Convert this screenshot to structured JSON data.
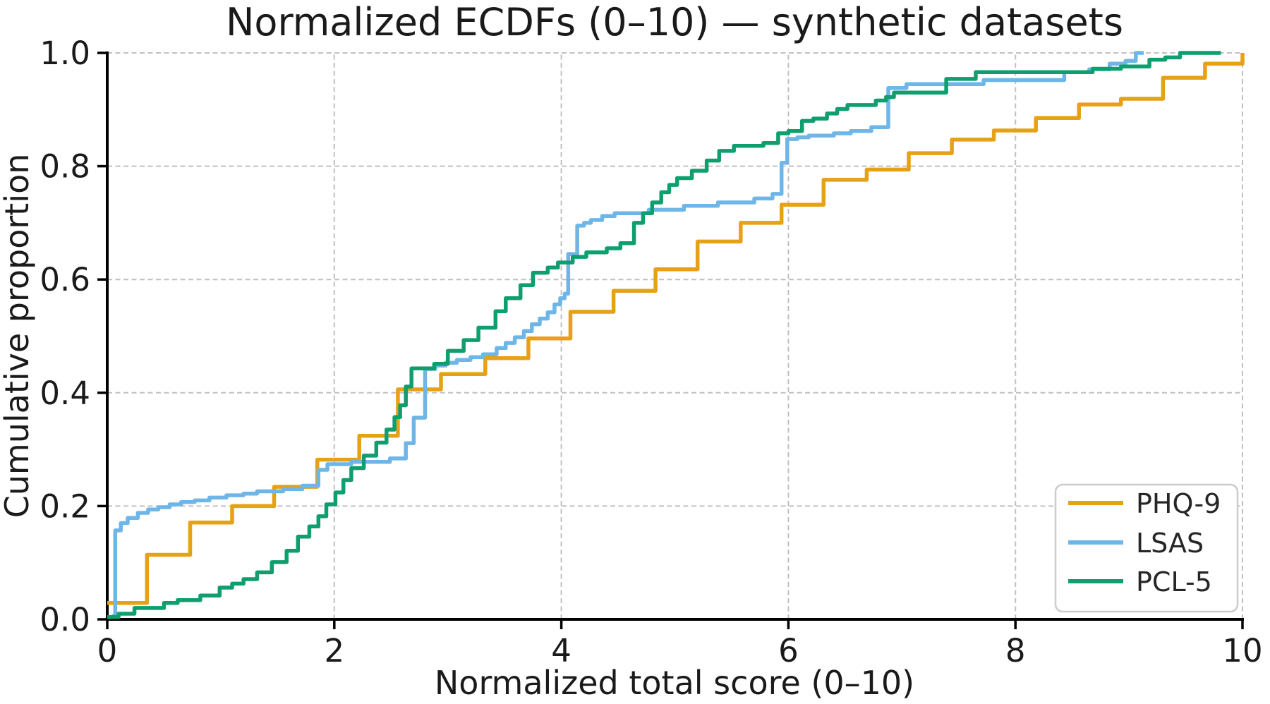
{
  "title": "Normalized ECDFs (0–10) — synthetic datasets",
  "colors": {
    "phq9": "#E6A117",
    "lsas": "#6EB6E8",
    "pcl5": "#0F9F6E",
    "grid": "#C0C0C0",
    "spine": "#000000",
    "text": "#1A1A1A",
    "legend_border": "#CCCCCC",
    "background": "#FFFFFF"
  },
  "axes": {
    "xlabel": "Normalized total score (0–10)",
    "ylabel": "Cumulative proportion",
    "x_ticks": [
      0,
      2,
      4,
      6,
      8,
      10
    ],
    "x_tick_labels": [
      "0",
      "2",
      "4",
      "6",
      "8",
      "10"
    ],
    "y_ticks": [
      0.0,
      0.2,
      0.4,
      0.6,
      0.8,
      1.0
    ],
    "y_tick_labels": [
      "0.0",
      "0.2",
      "0.4",
      "0.6",
      "0.8",
      "1.0"
    ],
    "xlim": [
      0,
      10
    ],
    "ylim": [
      0.0,
      1.0
    ],
    "grid": "dashed"
  },
  "legend": {
    "position": "lower right",
    "entries": [
      {
        "label": "PHQ-9",
        "color_key": "phq9"
      },
      {
        "label": "LSAS",
        "color_key": "lsas"
      },
      {
        "label": "PCL-5",
        "color_key": "pcl5"
      }
    ]
  },
  "chart_data": {
    "type": "line",
    "subtype": "ecdf-step",
    "title": "Normalized ECDFs (0–10) — synthetic datasets",
    "xlabel": "Normalized total score (0–10)",
    "ylabel": "Cumulative proportion",
    "xlim": [
      0,
      10
    ],
    "ylim": [
      0.0,
      1.0
    ],
    "grid": true,
    "legend_position": "lower right",
    "series": [
      {
        "name": "PHQ-9",
        "color_key": "phq9",
        "end_x": 10.0,
        "points": [
          [
            0.0,
            0.029
          ],
          [
            0.35,
            0.114
          ],
          [
            0.73,
            0.171
          ],
          [
            1.1,
            0.2
          ],
          [
            1.47,
            0.234
          ],
          [
            1.85,
            0.282
          ],
          [
            2.22,
            0.324
          ],
          [
            2.56,
            0.406
          ],
          [
            2.94,
            0.433
          ],
          [
            3.33,
            0.461
          ],
          [
            3.71,
            0.496
          ],
          [
            4.08,
            0.543
          ],
          [
            4.46,
            0.58
          ],
          [
            4.83,
            0.618
          ],
          [
            5.2,
            0.667
          ],
          [
            5.58,
            0.7
          ],
          [
            5.94,
            0.732
          ],
          [
            6.31,
            0.776
          ],
          [
            6.69,
            0.794
          ],
          [
            7.06,
            0.823
          ],
          [
            7.44,
            0.847
          ],
          [
            7.81,
            0.863
          ],
          [
            8.18,
            0.885
          ],
          [
            8.56,
            0.909
          ],
          [
            8.93,
            0.919
          ],
          [
            9.3,
            0.956
          ],
          [
            9.67,
            0.981
          ],
          [
            10.0,
            1.0
          ]
        ]
      },
      {
        "name": "LSAS",
        "color_key": "lsas",
        "end_x": 9.13,
        "points": [
          [
            0.04,
            0.006
          ],
          [
            0.07,
            0.157
          ],
          [
            0.12,
            0.17
          ],
          [
            0.18,
            0.179
          ],
          [
            0.27,
            0.188
          ],
          [
            0.36,
            0.194
          ],
          [
            0.45,
            0.198
          ],
          [
            0.55,
            0.203
          ],
          [
            0.65,
            0.207
          ],
          [
            0.77,
            0.21
          ],
          [
            0.9,
            0.215
          ],
          [
            1.05,
            0.219
          ],
          [
            1.2,
            0.222
          ],
          [
            1.32,
            0.226
          ],
          [
            1.55,
            0.23
          ],
          [
            1.72,
            0.236
          ],
          [
            1.86,
            0.264
          ],
          [
            1.94,
            0.274
          ],
          [
            2.15,
            0.278
          ],
          [
            2.49,
            0.284
          ],
          [
            2.63,
            0.311
          ],
          [
            2.7,
            0.356
          ],
          [
            2.8,
            0.442
          ],
          [
            2.89,
            0.448
          ],
          [
            2.98,
            0.453
          ],
          [
            3.08,
            0.458
          ],
          [
            3.2,
            0.463
          ],
          [
            3.31,
            0.468
          ],
          [
            3.43,
            0.479
          ],
          [
            3.51,
            0.488
          ],
          [
            3.59,
            0.498
          ],
          [
            3.67,
            0.509
          ],
          [
            3.74,
            0.521
          ],
          [
            3.81,
            0.531
          ],
          [
            3.88,
            0.542
          ],
          [
            3.94,
            0.556
          ],
          [
            3.99,
            0.567
          ],
          [
            4.03,
            0.575
          ],
          [
            4.06,
            0.645
          ],
          [
            4.14,
            0.695
          ],
          [
            4.2,
            0.7
          ],
          [
            4.26,
            0.705
          ],
          [
            4.36,
            0.712
          ],
          [
            4.47,
            0.717
          ],
          [
            4.77,
            0.723
          ],
          [
            5.08,
            0.73
          ],
          [
            5.38,
            0.736
          ],
          [
            5.7,
            0.743
          ],
          [
            5.86,
            0.751
          ],
          [
            5.94,
            0.806
          ],
          [
            5.99,
            0.848
          ],
          [
            6.08,
            0.851
          ],
          [
            6.18,
            0.854
          ],
          [
            6.4,
            0.858
          ],
          [
            6.55,
            0.862
          ],
          [
            6.73,
            0.869
          ],
          [
            6.88,
            0.938
          ],
          [
            7.04,
            0.945
          ],
          [
            7.72,
            0.952
          ],
          [
            8.43,
            0.966
          ],
          [
            8.65,
            0.971
          ],
          [
            8.83,
            0.981
          ],
          [
            8.97,
            0.986
          ],
          [
            9.06,
            1.0
          ]
        ]
      },
      {
        "name": "PCL-5",
        "color_key": "pcl5",
        "end_x": 9.81,
        "points": [
          [
            0.0,
            0.004
          ],
          [
            0.1,
            0.01
          ],
          [
            0.24,
            0.02
          ],
          [
            0.5,
            0.029
          ],
          [
            0.62,
            0.034
          ],
          [
            0.82,
            0.042
          ],
          [
            0.99,
            0.056
          ],
          [
            1.1,
            0.063
          ],
          [
            1.2,
            0.071
          ],
          [
            1.32,
            0.083
          ],
          [
            1.45,
            0.101
          ],
          [
            1.58,
            0.121
          ],
          [
            1.68,
            0.146
          ],
          [
            1.78,
            0.164
          ],
          [
            1.86,
            0.182
          ],
          [
            1.93,
            0.203
          ],
          [
            2.01,
            0.224
          ],
          [
            2.08,
            0.246
          ],
          [
            2.15,
            0.267
          ],
          [
            2.26,
            0.289
          ],
          [
            2.37,
            0.312
          ],
          [
            2.46,
            0.335
          ],
          [
            2.53,
            0.357
          ],
          [
            2.58,
            0.378
          ],
          [
            2.63,
            0.411
          ],
          [
            2.68,
            0.443
          ],
          [
            2.88,
            0.451
          ],
          [
            3.0,
            0.474
          ],
          [
            3.14,
            0.493
          ],
          [
            3.27,
            0.515
          ],
          [
            3.42,
            0.544
          ],
          [
            3.51,
            0.567
          ],
          [
            3.64,
            0.59
          ],
          [
            3.75,
            0.612
          ],
          [
            3.88,
            0.621
          ],
          [
            3.97,
            0.63
          ],
          [
            4.1,
            0.64
          ],
          [
            4.22,
            0.648
          ],
          [
            4.4,
            0.655
          ],
          [
            4.52,
            0.664
          ],
          [
            4.64,
            0.7
          ],
          [
            4.72,
            0.717
          ],
          [
            4.8,
            0.736
          ],
          [
            4.88,
            0.754
          ],
          [
            4.95,
            0.767
          ],
          [
            5.02,
            0.779
          ],
          [
            5.15,
            0.792
          ],
          [
            5.28,
            0.81
          ],
          [
            5.39,
            0.827
          ],
          [
            5.52,
            0.836
          ],
          [
            5.78,
            0.841
          ],
          [
            5.91,
            0.858
          ],
          [
            6.0,
            0.862
          ],
          [
            6.12,
            0.88
          ],
          [
            6.22,
            0.884
          ],
          [
            6.34,
            0.893
          ],
          [
            6.43,
            0.901
          ],
          [
            6.52,
            0.908
          ],
          [
            6.77,
            0.916
          ],
          [
            6.86,
            0.922
          ],
          [
            6.93,
            0.93
          ],
          [
            7.39,
            0.954
          ],
          [
            7.65,
            0.966
          ],
          [
            8.68,
            0.972
          ],
          [
            8.93,
            0.976
          ],
          [
            9.18,
            0.988
          ],
          [
            9.32,
            0.992
          ],
          [
            9.45,
            1.0
          ]
        ]
      }
    ]
  }
}
